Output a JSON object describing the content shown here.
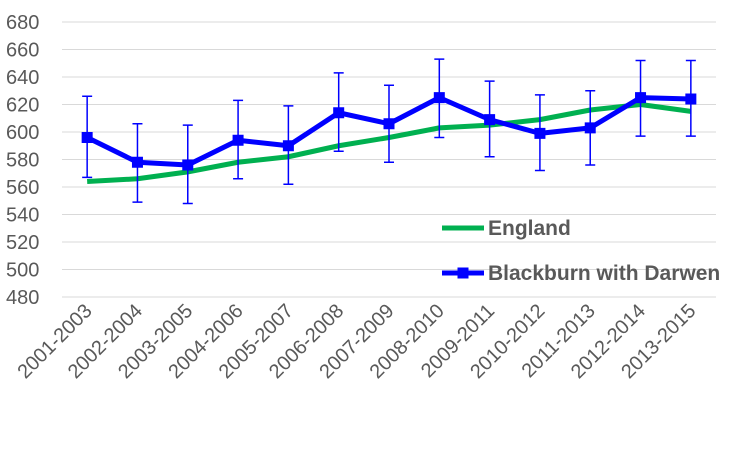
{
  "chart_data": {
    "type": "line",
    "categories": [
      "2001-2003",
      "2002-2004",
      "2003-2005",
      "2004-2006",
      "2005-2007",
      "2006-2008",
      "2007-2009",
      "2008-2010",
      "2009-2011",
      "2010-2012",
      "2011-2013",
      "2012-2014",
      "2013-2015"
    ],
    "ylim": [
      480,
      680
    ],
    "yticks": [
      480,
      500,
      520,
      540,
      560,
      580,
      600,
      620,
      640,
      660,
      680
    ],
    "grid": true,
    "legend_position": "bottom-right",
    "series": [
      {
        "name": "England",
        "color": "#00b050",
        "values": [
          564,
          566,
          571,
          578,
          582,
          590,
          596,
          603,
          605,
          609,
          616,
          620,
          615
        ]
      },
      {
        "name": "Blackburn with Darwen",
        "color": "#0000ff",
        "marker": "square",
        "values": [
          596,
          578,
          576,
          594,
          590,
          614,
          606,
          625,
          609,
          599,
          603,
          625,
          624
        ],
        "error_low": [
          567,
          549,
          548,
          566,
          562,
          586,
          578,
          596,
          582,
          572,
          576,
          597,
          597
        ],
        "error_high": [
          626,
          606,
          605,
          623,
          619,
          643,
          634,
          653,
          637,
          627,
          630,
          652,
          652
        ]
      }
    ]
  }
}
